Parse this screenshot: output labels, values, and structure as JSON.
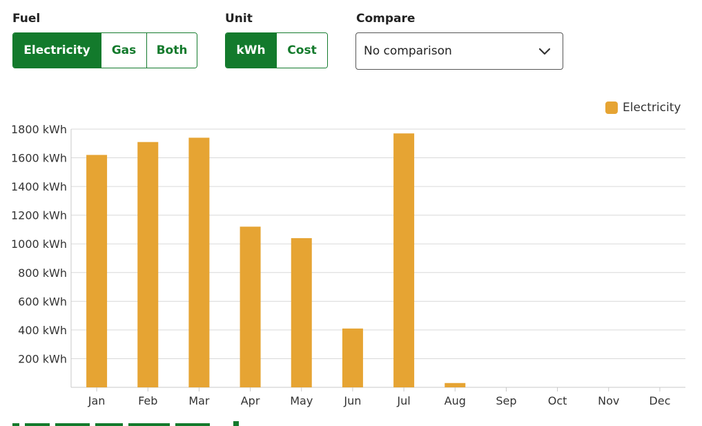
{
  "controls": {
    "fuel": {
      "label": "Fuel",
      "options": [
        "Electricity",
        "Gas",
        "Both"
      ],
      "selected": "Electricity"
    },
    "unit": {
      "label": "Unit",
      "options": [
        "kWh",
        "Cost"
      ],
      "selected": "kWh"
    },
    "compare": {
      "label": "Compare",
      "value": "No comparison"
    }
  },
  "colors": {
    "accent": "#137a2c",
    "bar": "#e6a433",
    "grid": "#d9d9d9"
  },
  "chart_data": {
    "type": "bar",
    "categories": [
      "Jan",
      "Feb",
      "Mar",
      "Apr",
      "May",
      "Jun",
      "Jul",
      "Aug",
      "Sep",
      "Oct",
      "Nov",
      "Dec"
    ],
    "series": [
      {
        "name": "Electricity",
        "values": [
          1620,
          1710,
          1740,
          1120,
          1040,
          410,
          1770,
          30,
          0,
          0,
          0,
          0
        ]
      }
    ],
    "ylim": [
      0,
      1800
    ],
    "yticks": [
      "200 kWh",
      "400 kWh",
      "600 kWh",
      "800 kWh",
      "1000 kWh",
      "1200 kWh",
      "1400 kWh",
      "1600 kWh",
      "1800 kWh"
    ],
    "grid": true,
    "legend": "top-right"
  }
}
